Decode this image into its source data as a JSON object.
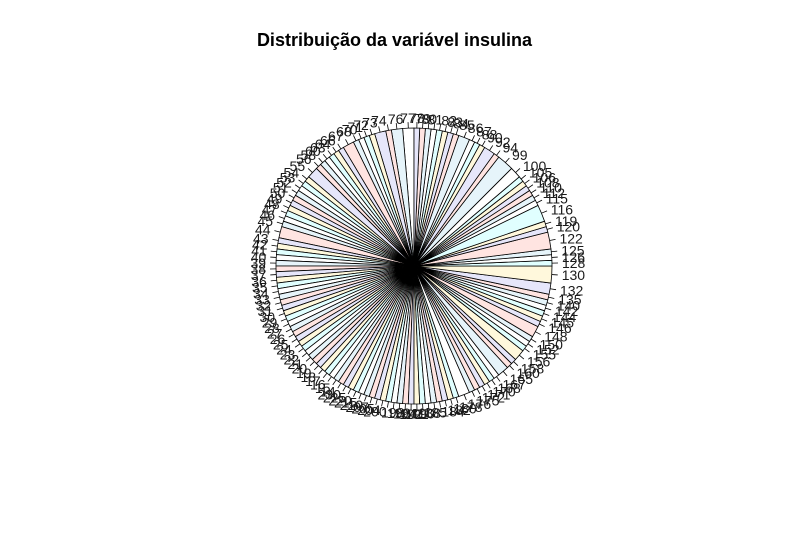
{
  "chart_data": {
    "type": "pie",
    "title": "Distribuição da variável insulina",
    "palette": [
      "#FFFFFF",
      "#E6F4FA",
      "#FFE4E1",
      "#E6E6FA",
      "#FFF8DC",
      "#E0FFFF"
    ],
    "stroke": "#000000",
    "categories": [
      "77",
      "76",
      "74",
      "73",
      "72",
      "71",
      "70",
      "68",
      "67",
      "66",
      "64",
      "63",
      "60",
      "58",
      "56",
      "55",
      "54",
      "53",
      "52",
      "51",
      "50",
      "49",
      "48",
      "47",
      "46",
      "45",
      "44",
      "43",
      "42",
      "41",
      "40",
      "39",
      "38",
      "37",
      "36",
      "35",
      "34",
      "33",
      "32",
      "31",
      "30",
      "29",
      "28",
      "27",
      "26",
      "25",
      "24",
      "23",
      "22",
      "21",
      "20",
      "19",
      "18",
      "17",
      "16",
      "15",
      "14",
      "230",
      "225",
      "220",
      "215",
      "210",
      "207",
      "205",
      "204",
      "200",
      "198",
      "196",
      "194",
      "192",
      "191",
      "190",
      "188",
      "185",
      "184",
      "182",
      "180",
      "178",
      "176",
      "175",
      "172",
      "171",
      "170",
      "168",
      "167",
      "165",
      "160",
      "158",
      "156",
      "155",
      "152",
      "150",
      "148",
      "146",
      "145",
      "144",
      "142",
      "140",
      "135",
      "132",
      "130",
      "128",
      "126",
      "125",
      "122",
      "120",
      "119",
      "116",
      "115",
      "112",
      "110",
      "108",
      "106",
      "105",
      "100",
      "99",
      "94",
      "92",
      "90",
      "88",
      "87",
      "86",
      "85",
      "84",
      "83",
      "82",
      "81",
      "80",
      "79",
      "78"
    ],
    "values": [
      2,
      2,
      1,
      2,
      1,
      1,
      1,
      1,
      2,
      1,
      1,
      1,
      1,
      1,
      1,
      2,
      1,
      1,
      1,
      1,
      1,
      1,
      1,
      1,
      1,
      1,
      2,
      1,
      1,
      1,
      1,
      1,
      1,
      1,
      1,
      1,
      1,
      1,
      1,
      1,
      1,
      1,
      1,
      1,
      1,
      1,
      1,
      1,
      1,
      1,
      1,
      1,
      1,
      1,
      1,
      1,
      1,
      1,
      1,
      1,
      1,
      1,
      1,
      1,
      1,
      1,
      1,
      1,
      1,
      1,
      1,
      1,
      1,
      1,
      1,
      1,
      1,
      1,
      2,
      1,
      1,
      1,
      1,
      1,
      1,
      2,
      1,
      1,
      2,
      1,
      1,
      1,
      2,
      1,
      1,
      1,
      1,
      1,
      1,
      2,
      3,
      1,
      1,
      1,
      3,
      1,
      1,
      3,
      1,
      1,
      1,
      1,
      1,
      1,
      2,
      3,
      1,
      2,
      1,
      1,
      1,
      2,
      1,
      1,
      1,
      1,
      1,
      1,
      1,
      1
    ]
  }
}
